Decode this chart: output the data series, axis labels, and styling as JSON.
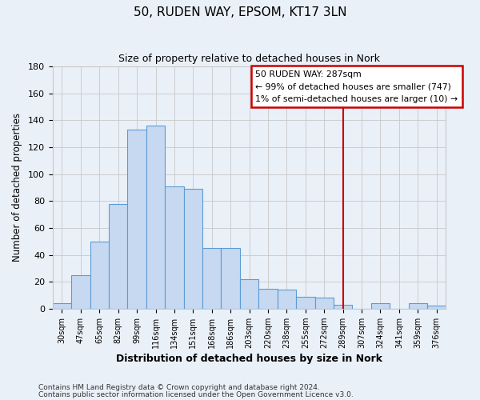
{
  "title": "50, RUDEN WAY, EPSOM, KT17 3LN",
  "subtitle": "Size of property relative to detached houses in Nork",
  "xlabel": "Distribution of detached houses by size in Nork",
  "ylabel": "Number of detached properties",
  "bar_labels": [
    "30sqm",
    "47sqm",
    "65sqm",
    "82sqm",
    "99sqm",
    "116sqm",
    "134sqm",
    "151sqm",
    "168sqm",
    "186sqm",
    "203sqm",
    "220sqm",
    "238sqm",
    "255sqm",
    "272sqm",
    "289sqm",
    "307sqm",
    "324sqm",
    "341sqm",
    "359sqm",
    "376sqm"
  ],
  "bar_values": [
    4,
    25,
    50,
    78,
    133,
    136,
    91,
    89,
    45,
    45,
    22,
    15,
    14,
    9,
    8,
    3,
    0,
    4,
    0,
    4,
    2
  ],
  "bar_color": "#c6d9f0",
  "bar_edge_color": "#5b9bd5",
  "vline_x": 15,
  "vline_color": "#cc0000",
  "legend_text_line1": "50 RUDEN WAY: 287sqm",
  "legend_text_line2": "← 99% of detached houses are smaller (747)",
  "legend_text_line3": "1% of semi-detached houses are larger (10) →",
  "legend_box_color": "#cc0000",
  "legend_bg": "#ffffff",
  "ylim": [
    0,
    180
  ],
  "yticks": [
    0,
    20,
    40,
    60,
    80,
    100,
    120,
    140,
    160,
    180
  ],
  "grid_color": "#c8c8c8",
  "bg_color": "#eaf0f8",
  "footnote1": "Contains HM Land Registry data © Crown copyright and database right 2024.",
  "footnote2": "Contains public sector information licensed under the Open Government Licence v3.0."
}
